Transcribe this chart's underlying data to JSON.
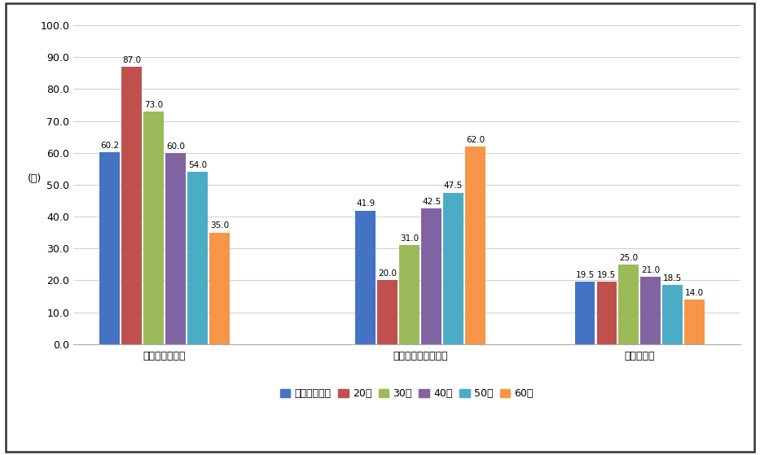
{
  "categories": [
    "スマートフォン",
    "フィーチャーフォン",
    "タブレット"
  ],
  "series_order": [
    "全体加重平均",
    "20代",
    "30代",
    "40代",
    "50代",
    "60代"
  ],
  "series": {
    "全体加重平均": [
      60.2,
      41.9,
      19.5
    ],
    "20代": [
      87.0,
      20.0,
      19.5
    ],
    "30代": [
      73.0,
      31.0,
      25.0
    ],
    "40代": [
      60.0,
      42.5,
      21.0
    ],
    "50代": [
      54.0,
      47.5,
      18.5
    ],
    "60代": [
      35.0,
      62.0,
      14.0
    ]
  },
  "colors": {
    "全体加重平均": "#4472C4",
    "20代": "#C0504D",
    "30代": "#9BBB59",
    "40代": "#8064A2",
    "50代": "#4BACC6",
    "60代": "#F79646"
  },
  "ylabel": "(％)",
  "ylim": [
    0,
    100
  ],
  "yticks": [
    0.0,
    10.0,
    20.0,
    30.0,
    40.0,
    50.0,
    60.0,
    70.0,
    80.0,
    90.0,
    100.0
  ],
  "background_color": "#FFFFFF",
  "bar_width": 0.12,
  "font_size_label": 8.5,
  "font_size_axis": 9,
  "font_size_legend": 9
}
